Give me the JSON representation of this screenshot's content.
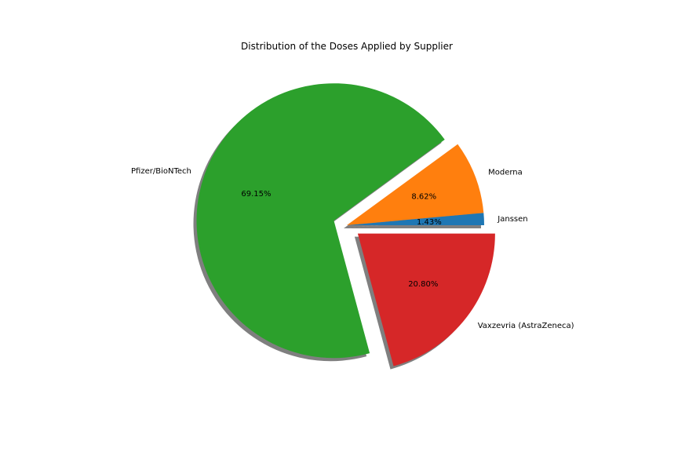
{
  "chart_data": {
    "type": "pie",
    "title": "Distribution of the Doses Applied by Supplier",
    "start_angle_deg": 0,
    "direction": "counterclockwise",
    "shadow": true,
    "slices": [
      {
        "label": "Janssen",
        "percent_label": "1.43%",
        "value": 1.43,
        "color": "#1f77b4",
        "exploded": false
      },
      {
        "label": "Moderna",
        "percent_label": "8.62%",
        "value": 8.62,
        "color": "#ff7f0e",
        "exploded": false
      },
      {
        "label": "Pfizer/BioNTech",
        "percent_label": "69.15%",
        "value": 69.15,
        "color": "#2ca02c",
        "exploded": true
      },
      {
        "label": "Vaxzevria (AstraZeneca)",
        "percent_label": "20.80%",
        "value": 20.8,
        "color": "#d62728",
        "exploded": true
      }
    ]
  }
}
